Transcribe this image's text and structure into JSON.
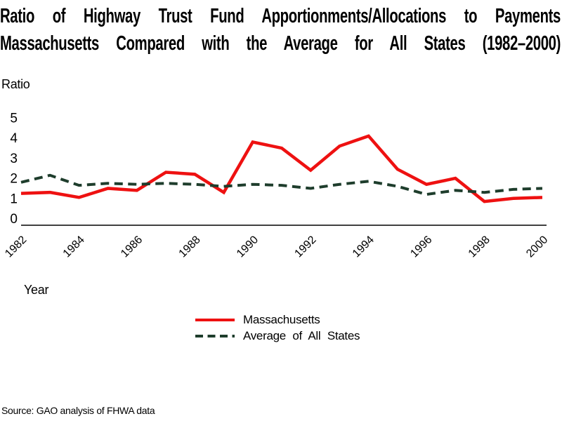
{
  "title": {
    "line1": "Ratio of Highway Trust Fund Apportionments/Allocations to Payments",
    "line2": "Massachusetts Compared with the Average for All States (1982–2000)"
  },
  "axes": {
    "y_label": "Ratio",
    "x_label": "Year",
    "y_ticks": [
      5,
      4,
      3,
      2,
      1,
      0
    ],
    "x_ticks": [
      1982,
      1984,
      1986,
      1988,
      1990,
      1992,
      1994,
      1996,
      1998,
      2000
    ]
  },
  "legend": {
    "items": [
      {
        "id": "massachusetts",
        "label": "Massachusetts",
        "color": "#ee1111",
        "style": "solid"
      },
      {
        "id": "average-all-states",
        "label": "Average of All States",
        "color": "#1e3d2c",
        "style": "dashed"
      }
    ]
  },
  "source": "Source: GAO analysis of FHWA data",
  "colors": {
    "massachusetts_line": "#ee1111",
    "average_line": "#1e3d2c",
    "axis": "#000000"
  },
  "chart_data": {
    "type": "line",
    "title": "Ratio of Highway Trust Fund Apportionments/Allocations to Payments — Massachusetts Compared with the Average for All States (1982–2000)",
    "xlabel": "Year",
    "ylabel": "Ratio",
    "ylim": [
      0,
      5
    ],
    "grid": false,
    "legend_position": "bottom-center",
    "x": [
      1982,
      1983,
      1984,
      1985,
      1986,
      1987,
      1988,
      1989,
      1990,
      1991,
      1992,
      1993,
      1994,
      1995,
      1996,
      1997,
      1998,
      1999,
      2000
    ],
    "series": [
      {
        "name": "Massachusetts",
        "color": "#ee1111",
        "dash": null,
        "values": [
          1.25,
          1.3,
          1.05,
          1.5,
          1.4,
          2.3,
          2.2,
          1.3,
          3.8,
          3.5,
          2.4,
          3.6,
          4.1,
          2.45,
          1.7,
          2.0,
          0.85,
          1.0,
          1.05
        ]
      },
      {
        "name": "Average of All States",
        "color": "#1e3d2c",
        "dash": "12 7.5",
        "values": [
          1.8,
          2.15,
          1.65,
          1.75,
          1.7,
          1.75,
          1.7,
          1.6,
          1.7,
          1.65,
          1.5,
          1.7,
          1.85,
          1.6,
          1.2,
          1.4,
          1.3,
          1.45,
          1.5
        ]
      }
    ]
  }
}
